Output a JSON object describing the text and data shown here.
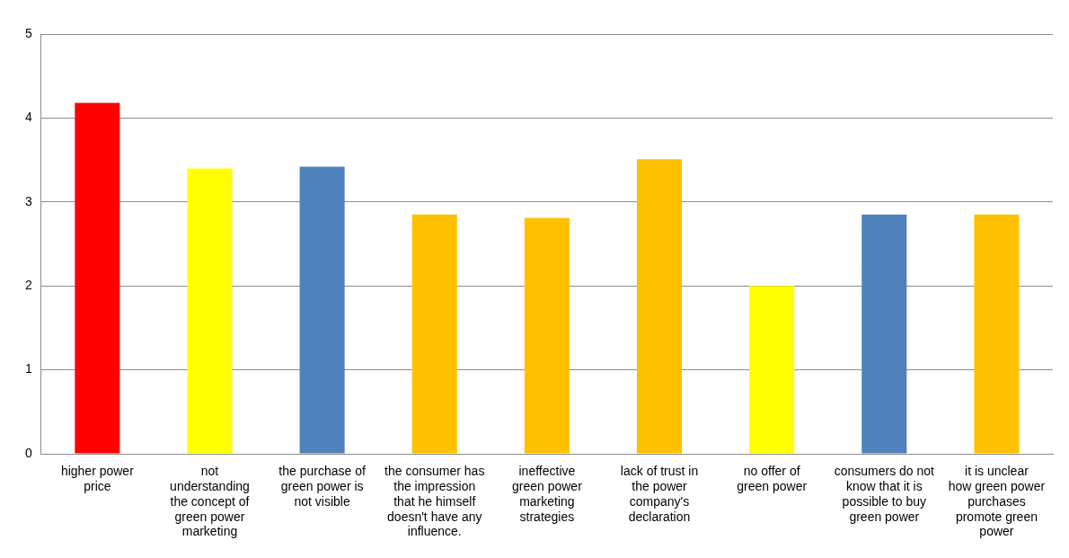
{
  "chart_data": {
    "type": "bar",
    "categories": [
      "higher power price",
      "not understanding the concept of green power marketing",
      "the purchase of green power is not visible",
      "the consumer has the impression that he himself doesn't have any influence.",
      "ineffective green power marketing strategies",
      "lack of trust in the power company's declaration",
      "no offer of green power",
      "consumers do not know that it is possible to buy green power",
      "it is unclear how green power purchases promote green power"
    ],
    "values": [
      4.18,
      3.4,
      3.42,
      2.85,
      2.81,
      3.51,
      2.0,
      2.85,
      2.85
    ],
    "colors": [
      "#ff0000",
      "#ffff00",
      "#4f81bd",
      "#ffc000",
      "#ffc000",
      "#ffc000",
      "#ffff00",
      "#4f81bd",
      "#ffc000"
    ],
    "ylim": [
      0,
      5
    ],
    "yticks": [
      0,
      1,
      2,
      3,
      4,
      5
    ],
    "grid": "y",
    "legend": false
  }
}
